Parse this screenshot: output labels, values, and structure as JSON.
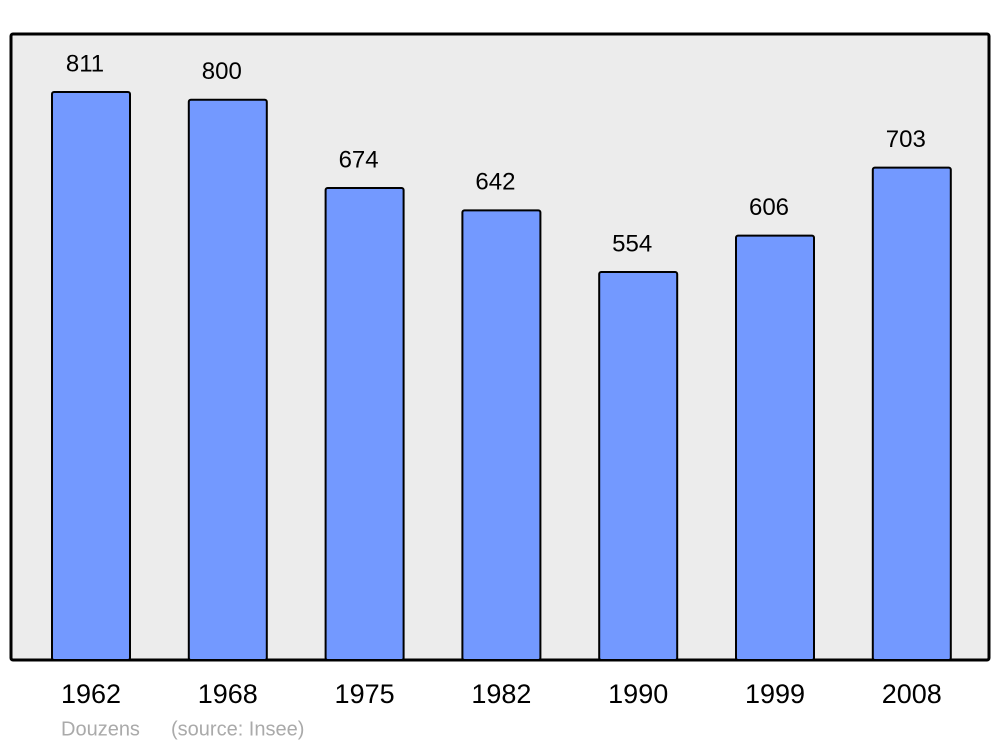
{
  "chart_data": {
    "type": "bar",
    "categories": [
      "1962",
      "1968",
      "1975",
      "1982",
      "1990",
      "1999",
      "2008"
    ],
    "values": [
      811,
      800,
      674,
      642,
      554,
      606,
      703
    ],
    "color": "#7399ff",
    "caption": "Douzens",
    "source": "(source: Insee)"
  }
}
